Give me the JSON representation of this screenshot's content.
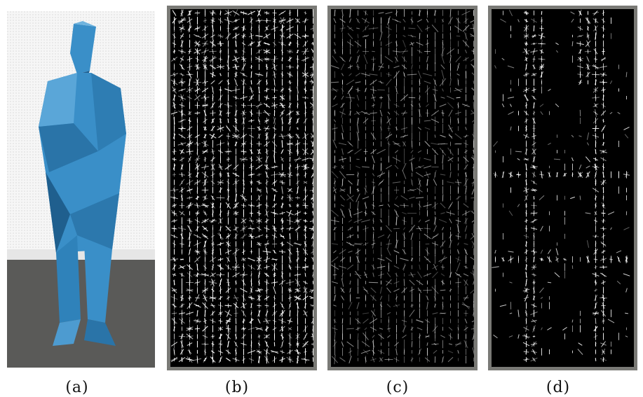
{
  "figure": {
    "panels": [
      {
        "id": "a",
        "caption": "(a)",
        "content": "photo"
      },
      {
        "id": "b",
        "caption": "(b)",
        "content": "hog-glyphs-full"
      },
      {
        "id": "c",
        "caption": "(c)",
        "content": "hog-glyphs-sparse"
      },
      {
        "id": "d",
        "caption": "(d)",
        "content": "hog-glyphs-outline"
      }
    ]
  },
  "colors": {
    "statue_blue": "#3a8fc8",
    "statue_dark": "#1f5f8e",
    "floor": "#5a5a58",
    "wall": "#f4f4f4",
    "frame": "#7a7a76",
    "glyph": "#ffffff"
  }
}
